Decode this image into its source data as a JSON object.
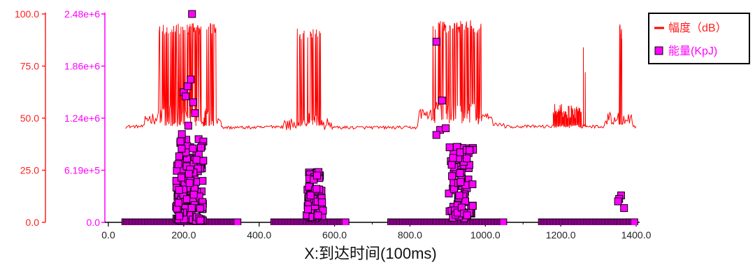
{
  "chart_data": {
    "type": "line+scatter",
    "xlabel": "X:到达时间(100ms)",
    "xlim": [
      0,
      1400
    ],
    "x_ticks": [
      "0.0",
      "200.0",
      "400.0",
      "600.0",
      "800.0",
      "1000.0",
      "1200.0",
      "1400.0"
    ],
    "y_left": {
      "ticks": [
        "0.0",
        "25.0",
        "50.0",
        "75.0",
        "100.0"
      ],
      "ylim": [
        0,
        100
      ],
      "color": "#ff2020"
    },
    "y_right": {
      "ticks": [
        "0.0",
        "6.19e+5",
        "1.24e+6",
        "1.86e+6",
        "2.48e+6"
      ],
      "ylim": [
        0,
        2480000
      ],
      "color": "#ff00ff"
    },
    "legend": {
      "placement": "top-right",
      "amplitude_label": "幅度（dB）",
      "energy_label": "能量(KpJ)"
    },
    "amplitude": {
      "color": "#ff0000",
      "segments": [
        {
          "x_start": 45,
          "x_end": 300,
          "baseline": 46,
          "burst_start": 135,
          "burst_end": 285,
          "burst_high": 96,
          "pre_level": 50
        },
        {
          "x_start": 300,
          "x_end": 420,
          "baseline": 45.5,
          "burst_start": 0,
          "burst_end": 0,
          "burst_high": 0,
          "pre_level": 46
        },
        {
          "x_start": 420,
          "x_end": 600,
          "baseline": 46,
          "burst_start": 500,
          "burst_end": 565,
          "burst_high": 93,
          "pre_level": 47
        },
        {
          "x_start": 600,
          "x_end": 860,
          "baseline": 45.5,
          "burst_start": 860,
          "burst_end": 990,
          "burst_high": 97,
          "pre_level": 52
        },
        {
          "x_start": 860,
          "x_end": 1050,
          "baseline": 47,
          "burst_start": 860,
          "burst_end": 990,
          "burst_high": 97,
          "pre_level": 52
        },
        {
          "x_start": 1050,
          "x_end": 1400,
          "baseline": 46,
          "burst_start": 1355,
          "burst_end": 1362,
          "burst_high": 95,
          "pre_level": 50
        }
      ],
      "spikes": [
        {
          "x": 1260,
          "y": 84
        },
        {
          "x": 1265,
          "y": 72
        },
        {
          "x": 1357,
          "y": 95
        },
        {
          "x": 1362,
          "y": 88
        }
      ]
    },
    "energy": {
      "color": "#ff00ff",
      "edge": "#000000",
      "zero_bands": [
        [
          45,
          345
        ],
        [
          440,
          630
        ],
        [
          750,
          1050
        ],
        [
          1150,
          1395
        ]
      ],
      "clusters": [
        {
          "x_center": 215,
          "x_spread": 75,
          "y_min": 20000.0,
          "y_max": 1000000.0,
          "count": 150
        },
        {
          "x_center": 548,
          "x_spread": 45,
          "y_min": 50000.0,
          "y_max": 600000.0,
          "count": 60
        },
        {
          "x_center": 935,
          "x_spread": 65,
          "y_min": 50000.0,
          "y_max": 900000.0,
          "count": 85
        }
      ],
      "points": [
        {
          "x": 222,
          "y": 2480000
        },
        {
          "x": 200,
          "y": 1550000
        },
        {
          "x": 210,
          "y": 1620000
        },
        {
          "x": 218,
          "y": 1700000
        },
        {
          "x": 225,
          "y": 1430000
        },
        {
          "x": 205,
          "y": 1500000
        },
        {
          "x": 230,
          "y": 1300000
        },
        {
          "x": 212,
          "y": 1150000
        },
        {
          "x": 195,
          "y": 1050000
        },
        {
          "x": 870,
          "y": 2150000
        },
        {
          "x": 885,
          "y": 1450000
        },
        {
          "x": 880,
          "y": 1100000
        },
        {
          "x": 895,
          "y": 1120000
        },
        {
          "x": 870,
          "y": 1040000
        },
        {
          "x": 1360,
          "y": 320000
        },
        {
          "x": 1355,
          "y": 280000
        },
        {
          "x": 1368,
          "y": 170000
        },
        {
          "x": 1352,
          "y": 250000
        }
      ]
    }
  }
}
